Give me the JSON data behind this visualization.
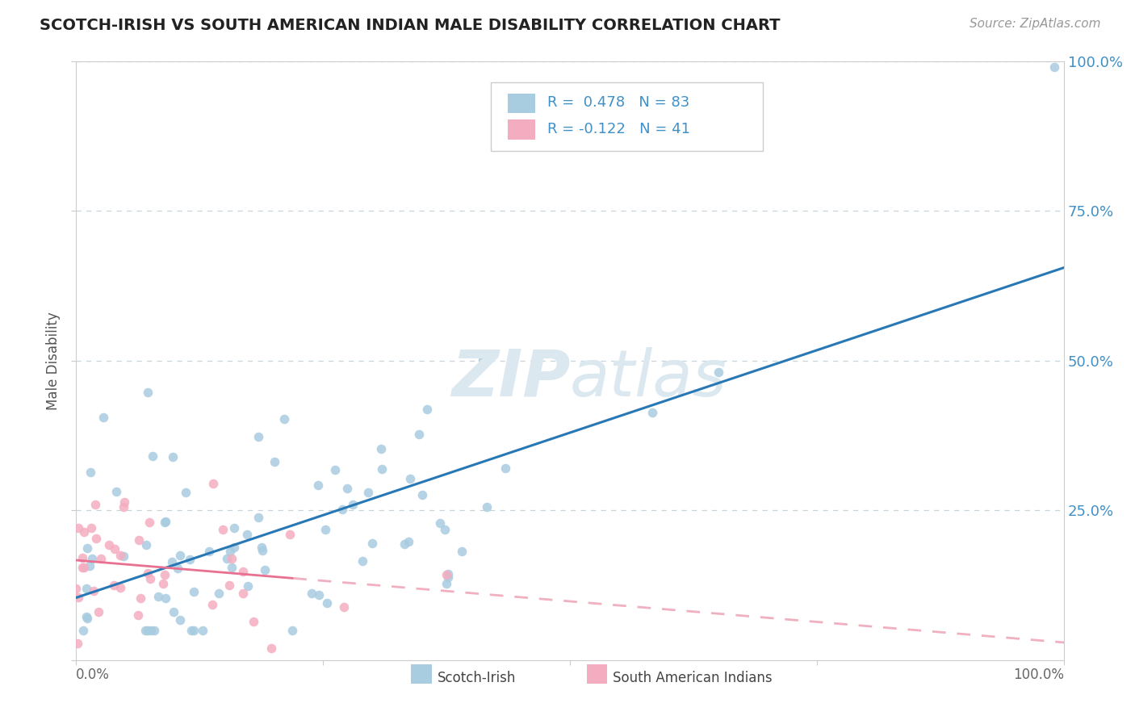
{
  "title": "SCOTCH-IRISH VS SOUTH AMERICAN INDIAN MALE DISABILITY CORRELATION CHART",
  "source": "Source: ZipAtlas.com",
  "ylabel": "Male Disability",
  "xlim": [
    0,
    1.0
  ],
  "ylim": [
    0,
    1.0
  ],
  "blue_scatter_color": "#a8cce0",
  "pink_scatter_color": "#f4adc0",
  "trend_blue_color": "#2878b5",
  "trend_pink_solid_color": "#e87090",
  "trend_pink_dash_color": "#f0b0c0",
  "watermark_color": "#dce8f0",
  "background_color": "#ffffff",
  "grid_color": "#c8d4dc",
  "right_label_color": "#4090c8",
  "title_color": "#222222",
  "source_color": "#999999",
  "legend_text_color": "#4090c8",
  "bottom_label_color": "#666666",
  "spine_color": "#cccccc"
}
